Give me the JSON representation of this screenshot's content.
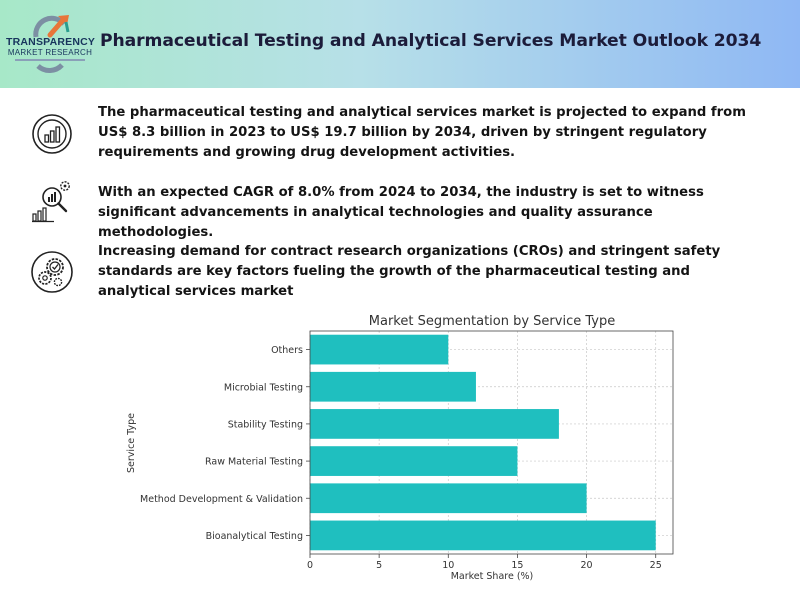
{
  "header": {
    "logo_line1": "TRANSPARENCY",
    "logo_line2": "MARKET RESEARCH",
    "title": "Pharmaceutical Testing and Analytical Services Market Outlook 2034"
  },
  "points": [
    {
      "icon": "bar-chart-circle-icon",
      "text": "The pharmaceutical testing and analytical services market is projected to expand from US$ 8.3 billion in 2023 to US$ 19.7 billion by 2034, driven by stringent regulatory requirements and growing drug development activities."
    },
    {
      "icon": "analytics-magnifier-gear-icon",
      "text": "With an expected CAGR of 8.0% from 2024 to 2034, the industry is set to witness significant advancements in analytical technologies and quality assurance methodologies."
    },
    {
      "icon": "gears-check-circle-icon",
      "text": "Increasing demand for contract research organizations (CROs) and stringent safety standards are key factors fueling the growth of the pharmaceutical testing and analytical services market"
    }
  ],
  "colors": {
    "bar": "#1fbfbf",
    "title": "#1c1c3a"
  },
  "chart_data": {
    "type": "bar",
    "orientation": "horizontal",
    "title": "Market Segmentation by Service Type",
    "xlabel": "Market Share (%)",
    "ylabel": "Service Type",
    "categories": [
      "Bioanalytical Testing",
      "Method Development & Validation",
      "Raw Material Testing",
      "Stability Testing",
      "Microbial Testing",
      "Others"
    ],
    "values": [
      25,
      20,
      15,
      18,
      12,
      10
    ],
    "xlim": [
      0,
      26.25
    ],
    "xticks": [
      "0",
      "5",
      "10",
      "15",
      "20",
      "25"
    ],
    "grid": true
  }
}
